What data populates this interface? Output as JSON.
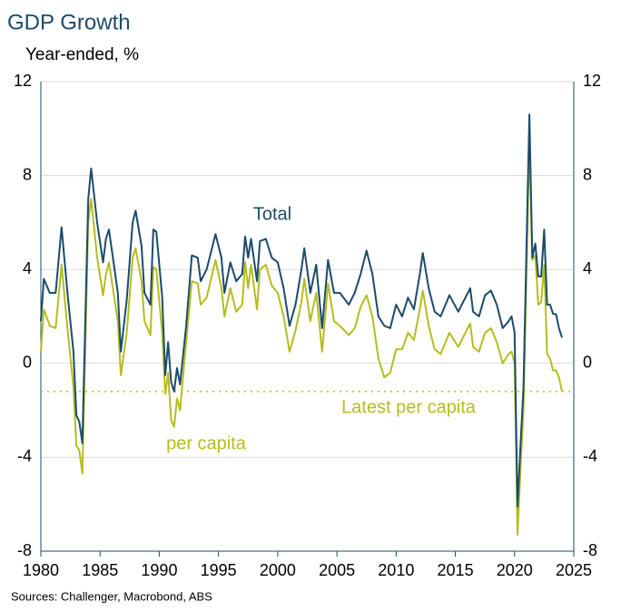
{
  "chart_data": {
    "type": "line",
    "title": "GDP Growth",
    "subtitle": "Year-ended, %",
    "source": "Sources: Challenger, Macrobond, ABS",
    "annotations": [
      "Total",
      "per capita",
      "Latest per capita"
    ],
    "reference_line": -1.2,
    "x": [
      1980.0,
      1980.25,
      1980.75,
      1981.25,
      1981.75,
      1982.25,
      1982.75,
      1983.0,
      1983.25,
      1983.5,
      1984.0,
      1984.25,
      1984.75,
      1985.25,
      1985.5,
      1985.75,
      1986.5,
      1986.75,
      1987.25,
      1987.75,
      1988.0,
      1988.5,
      1988.75,
      1989.25,
      1989.5,
      1989.75,
      1990.25,
      1990.5,
      1990.75,
      1991.0,
      1991.25,
      1991.5,
      1991.75,
      1992.25,
      1992.75,
      1993.25,
      1993.5,
      1994.0,
      1994.75,
      1995.25,
      1995.5,
      1996.0,
      1996.5,
      1997.0,
      1997.25,
      1997.5,
      1997.75,
      1998.25,
      1998.5,
      1999.0,
      1999.5,
      2000.0,
      2000.5,
      2001.0,
      2001.5,
      2002.0,
      2002.25,
      2002.75,
      2003.25,
      2003.75,
      2004.25,
      2004.75,
      2005.25,
      2006.0,
      2006.5,
      2007.0,
      2007.5,
      2008.0,
      2008.5,
      2009.0,
      2009.5,
      2010.0,
      2010.5,
      2011.0,
      2011.5,
      2012.0,
      2012.25,
      2012.75,
      2013.25,
      2013.75,
      2014.5,
      2015.25,
      2015.75,
      2016.25,
      2016.5,
      2017.0,
      2017.5,
      2018.0,
      2018.5,
      2019.0,
      2019.5,
      2019.75,
      2020.0,
      2020.25,
      2020.5,
      2020.75,
      2021.25,
      2021.5,
      2021.75,
      2022.0,
      2022.25,
      2022.5,
      2022.75,
      2023.0,
      2023.25,
      2023.5,
      2023.75,
      2024.0
    ],
    "series": [
      {
        "name": "Total",
        "color": "#1b4b6b",
        "values": [
          1.8,
          3.6,
          3.0,
          3.0,
          5.8,
          3.0,
          0.5,
          -2.2,
          -2.5,
          -3.4,
          7.0,
          8.3,
          6.0,
          4.3,
          5.3,
          5.7,
          3.0,
          0.5,
          2.7,
          6.0,
          6.5,
          5.0,
          3.0,
          2.5,
          5.7,
          5.6,
          2.8,
          -0.5,
          0.9,
          -0.8,
          -1.2,
          -0.2,
          -0.9,
          1.5,
          4.6,
          4.5,
          3.5,
          4.0,
          5.5,
          4.5,
          3.0,
          4.3,
          3.5,
          3.8,
          5.4,
          4.5,
          5.3,
          3.5,
          5.2,
          5.3,
          4.5,
          4.3,
          3.2,
          1.6,
          2.5,
          4.0,
          4.9,
          3.0,
          4.2,
          1.5,
          4.4,
          3.0,
          3.0,
          2.5,
          3.0,
          3.8,
          4.8,
          3.8,
          2.0,
          1.6,
          1.5,
          2.5,
          2.0,
          2.8,
          2.3,
          3.8,
          4.7,
          3.2,
          2.2,
          2.0,
          2.9,
          2.2,
          2.7,
          3.2,
          2.2,
          2.0,
          2.9,
          3.1,
          2.5,
          1.5,
          1.8,
          2.0,
          1.3,
          -6.1,
          -3.5,
          -1.0,
          10.6,
          4.5,
          5.1,
          3.7,
          3.7,
          5.7,
          2.5,
          2.5,
          2.1,
          2.1,
          1.5,
          1.1
        ]
      },
      {
        "name": "per capita",
        "color": "#b5bd1c",
        "values": [
          0.5,
          2.3,
          1.6,
          1.5,
          4.2,
          1.5,
          -1.0,
          -3.5,
          -3.7,
          -4.7,
          6.0,
          7.0,
          4.5,
          2.9,
          3.8,
          4.3,
          1.8,
          -0.5,
          1.3,
          4.5,
          4.9,
          3.5,
          1.8,
          1.2,
          4.1,
          4.0,
          1.3,
          -1.3,
          -0.4,
          -2.4,
          -2.7,
          -1.5,
          -2.0,
          0.8,
          3.5,
          3.4,
          2.5,
          2.8,
          4.4,
          3.2,
          2.0,
          3.2,
          2.2,
          2.5,
          4.3,
          3.2,
          4.2,
          2.3,
          4.0,
          4.2,
          3.3,
          3.0,
          2.0,
          0.5,
          1.4,
          2.6,
          3.6,
          1.8,
          3.0,
          0.5,
          3.4,
          1.8,
          1.6,
          1.2,
          1.5,
          2.4,
          2.9,
          2.0,
          0.2,
          -0.6,
          -0.4,
          0.6,
          0.6,
          1.3,
          1.0,
          2.3,
          3.1,
          1.6,
          0.6,
          0.4,
          1.3,
          0.7,
          1.2,
          1.7,
          0.7,
          0.5,
          1.3,
          1.5,
          0.9,
          0.0,
          0.4,
          0.5,
          0.0,
          -7.3,
          -4.5,
          -2.0,
          9.5,
          4.4,
          4.6,
          2.5,
          2.6,
          4.2,
          0.4,
          0.2,
          -0.3,
          -0.3,
          -0.6,
          -1.2
        ]
      }
    ],
    "xlim": [
      1980,
      2025
    ],
    "xticks": [
      1980,
      1985,
      1990,
      1995,
      2000,
      2005,
      2010,
      2015,
      2020,
      2025
    ],
    "ylim": [
      -8,
      12
    ],
    "yticks": [
      -8,
      -4,
      0,
      4,
      8,
      12
    ],
    "grid": true
  }
}
